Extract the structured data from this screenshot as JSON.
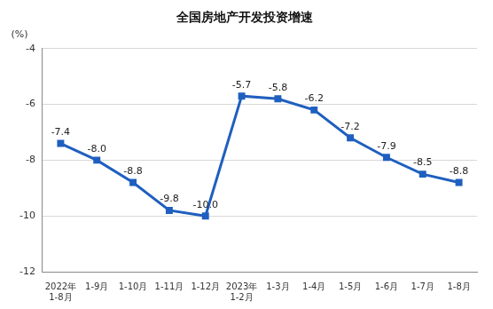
{
  "chart_data": {
    "type": "line",
    "title": "全国房地产开发投资增速",
    "y_label": "(%)",
    "categories": [
      "2022年\n1-8月",
      "1-9月",
      "1-10月",
      "1-11月",
      "1-12月",
      "2023年\n1-2月",
      "1-3月",
      "1-4月",
      "1-5月",
      "1-6月",
      "1-7月",
      "1-8月"
    ],
    "values": [
      -7.4,
      -8.0,
      -8.8,
      -9.8,
      -10.0,
      -5.7,
      -5.8,
      -6.2,
      -7.2,
      -7.9,
      -8.5,
      -8.8
    ],
    "value_labels": [
      "-7.4",
      "-8.0",
      "-8.8",
      "-9.8",
      "-10.0",
      "-5.7",
      "-5.8",
      "-6.2",
      "-7.2",
      "-7.9",
      "-8.5",
      "-8.8"
    ],
    "color": "#1f5fbf",
    "marker": "square",
    "line_style": "solid",
    "ylim": [
      -12,
      -4
    ],
    "yticks": [
      -12,
      -10,
      -8,
      -6,
      -4
    ],
    "grid": true,
    "data_labels": true
  }
}
